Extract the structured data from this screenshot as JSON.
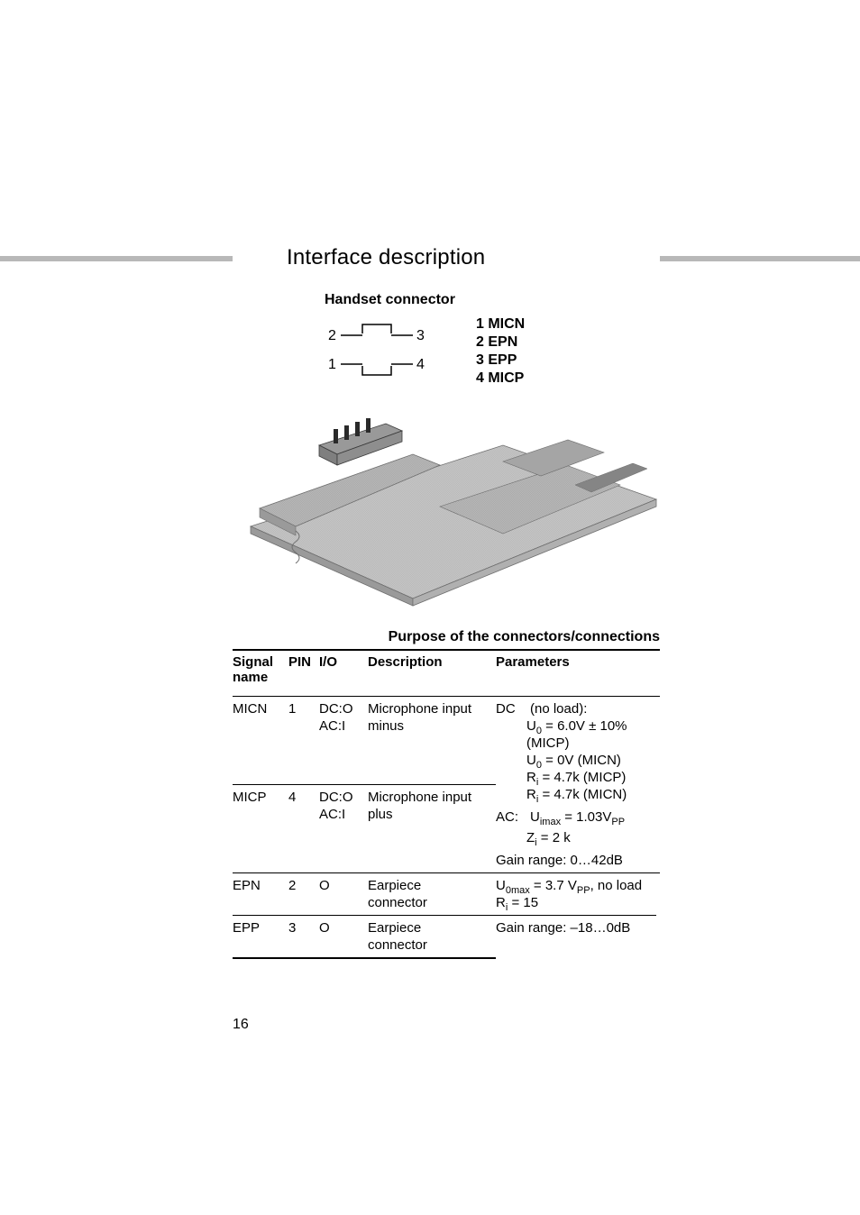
{
  "page": {
    "title": "Interface description",
    "section_heading": "Handset connector",
    "page_number": "16"
  },
  "diagram": {
    "pin_numbers": {
      "p1": "1",
      "p2": "2",
      "p3": "3",
      "p4": "4"
    },
    "pin_legend": {
      "l1": "1 MICN",
      "l2": "2 EPN",
      "l3": "3 EPP",
      "l4": "4 MICP"
    },
    "phone": {
      "base_fill": "#c2c2c2",
      "handset_fill": "#b3b3b3",
      "line_color": "#6e6e6e",
      "line_color_dark": "#3a3a3a",
      "screen_fill": "#a8a8a8"
    }
  },
  "table": {
    "caption": "Purpose of the connectors/connections",
    "headers": {
      "signal": "Signal name",
      "pin": "PIN",
      "io": "I/O",
      "desc": "Description",
      "param": "Parameters"
    },
    "rows": {
      "micn": {
        "signal": "MICN",
        "pin": "1",
        "io_line1": "DC:O",
        "io_line2": "AC:I",
        "desc_line1": "Microphone input",
        "desc_line2": "minus"
      },
      "micp": {
        "signal": "MICP",
        "pin": "4",
        "io_line1": "DC:O",
        "io_line2": "AC:I",
        "desc_line1": "Microphone input",
        "desc_line2": "plus"
      },
      "mic_params": {
        "dc_label": "DC",
        "dc_heading": "(no load):",
        "dc_l1_pre": "U",
        "dc_l1_sub": "0",
        "dc_l1_post": " = 6.0V ± 10%",
        "dc_l2": "(MICP)",
        "dc_l3_pre": "U",
        "dc_l3_sub": "0",
        "dc_l3_post": " = 0V (MICN)",
        "dc_l4_pre": "R",
        "dc_l4_sub": "i",
        "dc_l4_post": " = 4.7k (MICP)",
        "dc_l5_pre": "R",
        "dc_l5_sub": "i",
        "dc_l5_post": " = 4.7k (MICN)",
        "ac_label": "AC:",
        "ac_l1_pre": "U",
        "ac_l1_sub": "imax",
        "ac_l1_post": " = 1.03V",
        "ac_l1_sub2": "PP",
        "ac_l2_pre": "Z",
        "ac_l2_sub": "i",
        "ac_l2_post": " = 2 k",
        "gain": "Gain range: 0…42dB"
      },
      "epn": {
        "signal": "EPN",
        "pin": "2",
        "io": "O",
        "desc_line1": "Earpiece",
        "desc_line2": "connector",
        "param_l1_pre": "U",
        "param_l1_sub": "0max",
        "param_l1_mid": " = 3.7 V",
        "param_l1_sub2": "PP",
        "param_l1_post": ", no load",
        "param_l2_pre": "R",
        "param_l2_sub": "i",
        "param_l2_post": " = 15"
      },
      "epp": {
        "signal": "EPP",
        "pin": "3",
        "io": "O",
        "desc_line1": "Earpiece",
        "desc_line2": "connector",
        "param": "Gain range: –18…0dB"
      }
    }
  }
}
